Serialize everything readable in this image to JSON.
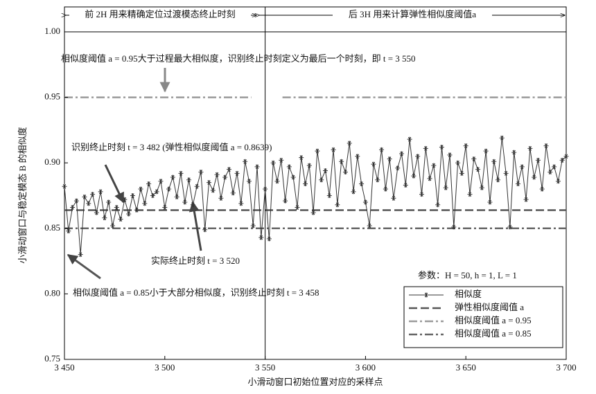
{
  "chart_data": {
    "type": "line",
    "xlabel": "小滑动窗口初始位置对应的采样点",
    "ylabel": "小滑动窗口与稳定模态 B 的相似度",
    "xlim": [
      3450,
      3700
    ],
    "ylim": [
      0.75,
      1.0
    ],
    "xticks": [
      {
        "value": 3450,
        "label": "3 450"
      },
      {
        "value": 3500,
        "label": "3 500"
      },
      {
        "value": 3550,
        "label": "3 550"
      },
      {
        "value": 3600,
        "label": "3 600"
      },
      {
        "value": 3650,
        "label": "3 650"
      },
      {
        "value": 3700,
        "label": "3 700"
      }
    ],
    "yticks": [
      {
        "value": 0.75,
        "label": "0.75"
      },
      {
        "value": 0.8,
        "label": "0.80"
      },
      {
        "value": 0.85,
        "label": "0.85"
      },
      {
        "value": 0.9,
        "label": "0.90"
      },
      {
        "value": 0.95,
        "label": "0.95"
      },
      {
        "value": 1.0,
        "label": "1.00"
      }
    ],
    "grid": false,
    "divider_x": 3550,
    "phase_labels": [
      "前 2H 用来精确定位过渡模态终止时刻",
      "后 3H 用来计算弹性相似度阈值a"
    ],
    "x": [
      3450,
      3452,
      3454,
      3456,
      3458,
      3460,
      3462,
      3464,
      3466,
      3468,
      3470,
      3472,
      3474,
      3476,
      3478,
      3480,
      3482,
      3484,
      3486,
      3488,
      3490,
      3492,
      3494,
      3496,
      3498,
      3500,
      3502,
      3504,
      3506,
      3508,
      3510,
      3512,
      3514,
      3516,
      3518,
      3520,
      3522,
      3524,
      3526,
      3528,
      3530,
      3532,
      3534,
      3536,
      3538,
      3540,
      3542,
      3544,
      3546,
      3548,
      3550,
      3552,
      3554,
      3556,
      3558,
      3560,
      3562,
      3564,
      3566,
      3568,
      3570,
      3572,
      3574,
      3576,
      3578,
      3580,
      3582,
      3584,
      3586,
      3588,
      3590,
      3592,
      3594,
      3596,
      3598,
      3600,
      3602,
      3604,
      3606,
      3608,
      3610,
      3612,
      3614,
      3616,
      3618,
      3620,
      3622,
      3624,
      3626,
      3628,
      3630,
      3632,
      3634,
      3636,
      3638,
      3640,
      3642,
      3644,
      3646,
      3648,
      3650,
      3652,
      3654,
      3656,
      3658,
      3660,
      3662,
      3664,
      3666,
      3668,
      3670,
      3672,
      3674,
      3676,
      3678,
      3680,
      3682,
      3684,
      3686,
      3688,
      3690,
      3692,
      3694,
      3696,
      3698,
      3700
    ],
    "series": [
      {
        "name": "相似度",
        "color": "#333333",
        "marker": "asterisk",
        "values": [
          0.882,
          0.848,
          0.866,
          0.871,
          0.83,
          0.874,
          0.869,
          0.876,
          0.862,
          0.878,
          0.858,
          0.87,
          0.852,
          0.866,
          0.857,
          0.872,
          0.861,
          0.875,
          0.864,
          0.88,
          0.869,
          0.884,
          0.875,
          0.878,
          0.886,
          0.866,
          0.88,
          0.889,
          0.874,
          0.892,
          0.87,
          0.887,
          0.868,
          0.882,
          0.893,
          0.849,
          0.885,
          0.879,
          0.891,
          0.873,
          0.889,
          0.895,
          0.877,
          0.892,
          0.869,
          0.901,
          0.886,
          0.852,
          0.897,
          0.843,
          0.88,
          0.842,
          0.9,
          0.886,
          0.902,
          0.871,
          0.897,
          0.889,
          0.866,
          0.904,
          0.884,
          0.898,
          0.862,
          0.909,
          0.887,
          0.894,
          0.875,
          0.91,
          0.868,
          0.901,
          0.893,
          0.915,
          0.878,
          0.905,
          0.884,
          0.87,
          0.852,
          0.899,
          0.887,
          0.91,
          0.88,
          0.903,
          0.873,
          0.896,
          0.907,
          0.883,
          0.918,
          0.89,
          0.905,
          0.876,
          0.911,
          0.888,
          0.898,
          0.868,
          0.912,
          0.881,
          0.906,
          0.851,
          0.9,
          0.892,
          0.913,
          0.876,
          0.903,
          0.895,
          0.881,
          0.909,
          0.87,
          0.901,
          0.887,
          0.919,
          0.892,
          0.851,
          0.908,
          0.884,
          0.897,
          0.872,
          0.911,
          0.889,
          0.902,
          0.88,
          0.913,
          0.893,
          0.897,
          0.886,
          0.902,
          0.905
        ]
      }
    ],
    "hlines": [
      {
        "name": "弹性相似度阈值 a",
        "value": 0.8639,
        "color": "#555555",
        "style": "dashed"
      },
      {
        "name": "相似度阈值 a = 0.95",
        "value": 0.95,
        "color": "#9a9a9a",
        "style": "dashdot"
      },
      {
        "name": "相似度阈值 a = 0.85",
        "value": 0.85,
        "color": "#666666",
        "style": "dashdot"
      }
    ],
    "legend": "lower right",
    "params": "参数：H = 50, h = 1, L = 1",
    "annotations": [
      "相似度阈值 a = 0.95大于过程最大相似度，识别终止时刻定义为最后一个时刻，即 t = 3 550",
      "识别终止时刻 t = 3 482 (弹性相似度阈值 a = 0.8639)",
      "实际终止时刻 t = 3 520",
      "相似度阈值 a = 0.85小于大部分相似度，识别终止时刻 t = 3 458"
    ]
  }
}
